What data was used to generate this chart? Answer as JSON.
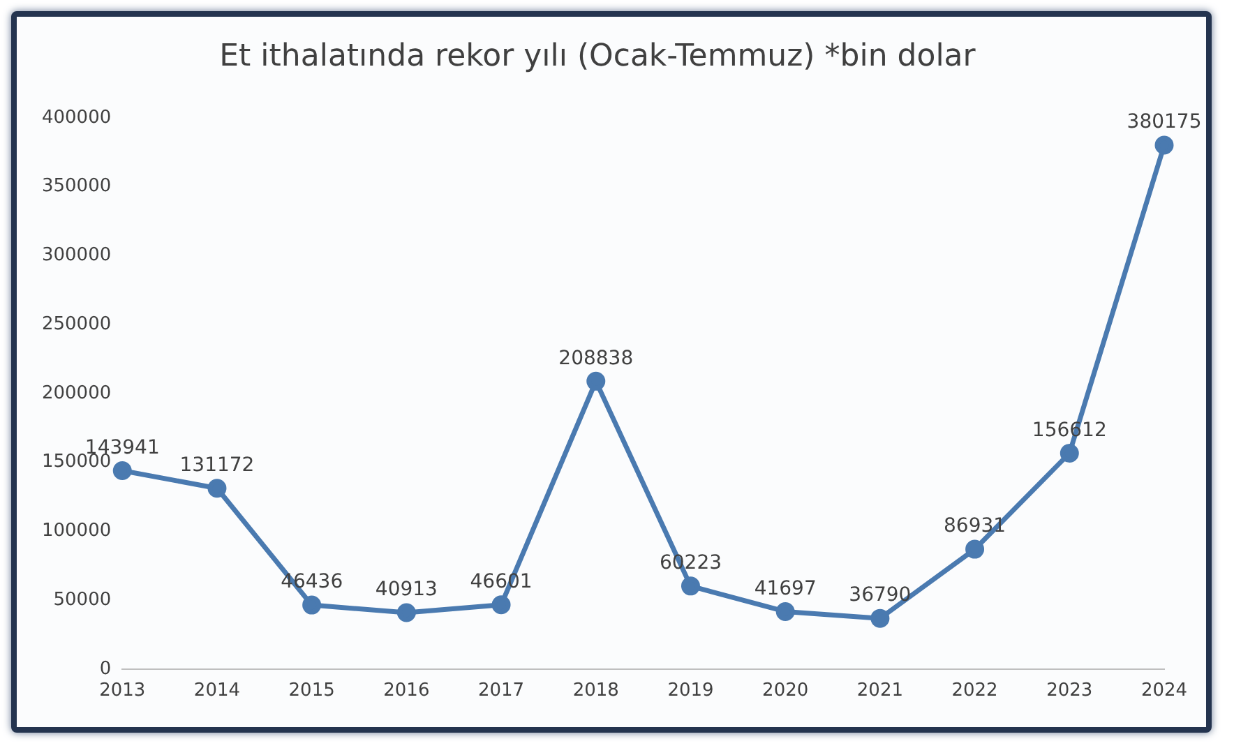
{
  "chart_data": {
    "type": "line",
    "title": "Et ithalatında rekor yılı (Ocak-Temmuz) *bin dolar",
    "categories": [
      "2013",
      "2014",
      "2015",
      "2016",
      "2017",
      "2018",
      "2019",
      "2020",
      "2021",
      "2022",
      "2023",
      "2024"
    ],
    "series": [
      {
        "color": "#4a7ab0",
        "values": [
          143941,
          131172,
          46436,
          40913,
          46601,
          208838,
          60223,
          41697,
          36790,
          86931,
          156612,
          380175
        ]
      }
    ],
    "ylim": [
      0,
      400000
    ],
    "yticks": [
      0,
      50000,
      100000,
      150000,
      200000,
      250000,
      300000,
      350000,
      400000
    ],
    "grid": false,
    "legend": false,
    "marker": "circle",
    "line_style": "solid",
    "data_labels": true
  }
}
